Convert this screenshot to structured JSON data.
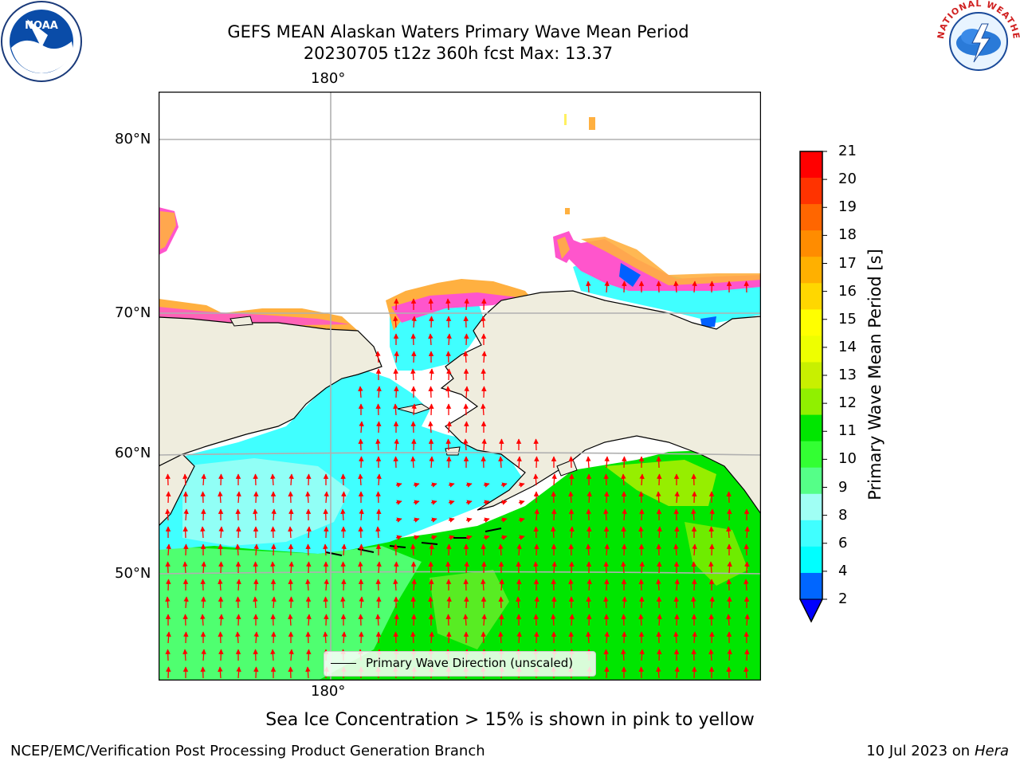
{
  "title": {
    "line1": "GEFS MEAN Alaskan Waters Primary Wave Mean Period",
    "line2": "20230705 t12z 360h fcst   Max: 13.37"
  },
  "map": {
    "lon_label_top": "180°",
    "lon_label_bottom": "180°",
    "lat_labels": [
      "80°N",
      "70°N",
      "60°N",
      "50°N"
    ],
    "legend_label": "Primary Wave Direction (unscaled)",
    "arrow_color": "#ff0000",
    "land_color": "#efedde",
    "colors": {
      "land": "#efedde",
      "light_cyan": "#a0fff4",
      "cyan": "#40ffff",
      "bright_cyan": "#00ffff",
      "green": "#00e600",
      "light_green": "#4fff70",
      "lime": "#67f000",
      "yellow_green": "#c8f000",
      "ice_pink": "#ff55cc",
      "ice_orange": "#ffb040",
      "ice_yellow": "#fff060",
      "blue": "#0060ff"
    }
  },
  "colorbar": {
    "label": "Primary Wave Mean Period [s]",
    "ticks": [
      "21",
      "20",
      "19",
      "18",
      "17",
      "16",
      "15",
      "14",
      "13",
      "12",
      "11",
      "10",
      "9",
      "8",
      "6",
      "4",
      "2"
    ],
    "colors": [
      "#ff0000",
      "#ff3300",
      "#ff6600",
      "#ff8c00",
      "#ffb000",
      "#ffd700",
      "#ffff00",
      "#eeff00",
      "#c8f000",
      "#90f000",
      "#00e600",
      "#33ff33",
      "#55ff88",
      "#a0fff4",
      "#40ffff",
      "#00ffff",
      "#0066ff"
    ],
    "extend_color": "#0000ff"
  },
  "caption": "Sea Ice Concentration > 15% is shown in pink to yellow",
  "footer": {
    "left": "NCEP/EMC/Verification Post Processing Product Generation Branch",
    "date": "10 Jul 2023 on ",
    "machine": "Hera"
  },
  "logos": {
    "noaa_text": "NOAA",
    "nws_text": "NATIONAL WEATHER SERVICE"
  }
}
